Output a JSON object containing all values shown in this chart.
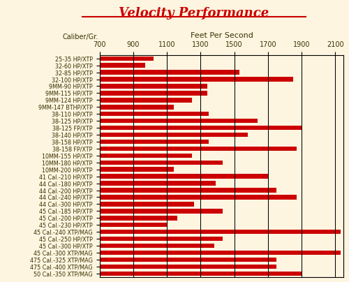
{
  "title": "Velocity Performance",
  "subtitle": "Feet Per Second",
  "x_label": "Caliber/Gr.",
  "x_min": 700,
  "x_max": 2150,
  "x_ticks": [
    700,
    900,
    1100,
    1300,
    1500,
    1700,
    1900,
    2100
  ],
  "bg_color": "#fdf5e0",
  "bar_color": "#cc0000",
  "title_color": "#cc0000",
  "label_color": "#3a3000",
  "grid_color": "#000000",
  "categories": [
    "25-35 HP/XTP",
    "32-60 HP/XTP",
    "32-85 HP/XTP",
    "32-100 HP/XTP",
    "9MM-90 HP/XTP",
    "9MM-115 HP/XTP",
    "9MM-124 HP/XTP",
    "9MM-147 BTHP/XTP",
    "38-110 HP/XTP",
    "38-125 HP/XTP",
    "38-125 FP/XTP",
    "38-140 HP/XTP",
    "38-158 HP/XTP",
    "38-158 FP/XTP",
    "10MM-155 HP/XTP",
    "10MM-180 HP/XTP",
    "10MM-200 HP/XTP",
    "41 Cal.-210 HP/XTP",
    "44 Cal.-180 HP/XTP",
    "44 Cal.-200 HP/XTP",
    "44 Cal.-240 HP/XTP",
    "44 Cal.-300 HP/XTP",
    "45 Cal.-185 HP/XTP",
    "45 Cal.-200 HP/XTP",
    "45 Cal.-230 HP/XTP",
    "45 Cal.-240 XTP/MAG",
    "45 Cal.-250 HP/XTP",
    "45 Cal.-300 HP/XTP",
    "45 Cal.-300 XTP/MAG",
    "475 Cal.-325 XTP/MAG",
    "475 Cal.-400 XTP/MAG",
    "50 Cal.-350 XTP/MAG"
  ],
  "values": [
    1020,
    970,
    1530,
    1850,
    1340,
    1340,
    1250,
    1140,
    1350,
    1640,
    1900,
    1580,
    1350,
    1870,
    1250,
    1430,
    1140,
    1700,
    1390,
    1750,
    1870,
    1260,
    1430,
    1160,
    1100,
    2130,
    1430,
    1380,
    2130,
    1750,
    1750,
    1900
  ],
  "title_fontsize": 13,
  "tick_fontsize": 7,
  "label_fontsize": 5.8,
  "bar_height": 0.65
}
